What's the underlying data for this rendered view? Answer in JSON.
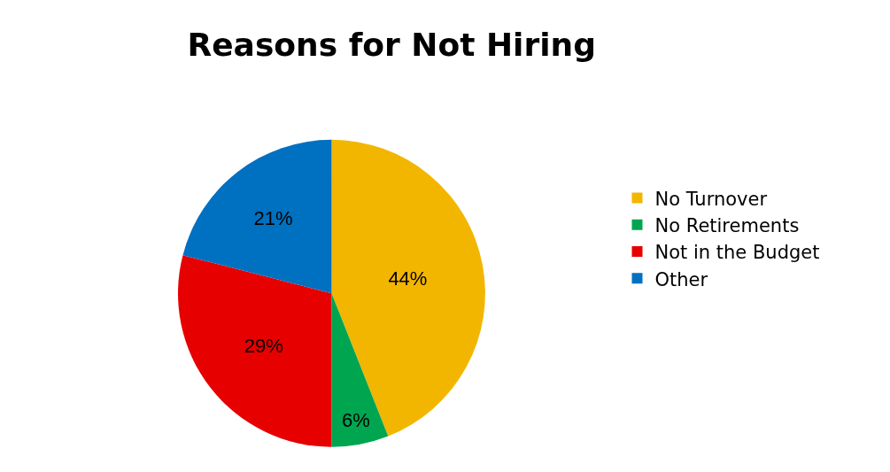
{
  "chart_data": {
    "type": "pie",
    "title": "Reasons for Not Hiring",
    "categories": [
      "No Turnover",
      "No Retirements",
      "Not in the Budget",
      "Other"
    ],
    "values": [
      44,
      6,
      29,
      21
    ],
    "colors": [
      "#f2b600",
      "#00a550",
      "#e60000",
      "#0070c0"
    ],
    "value_labels": [
      "44%",
      "6%",
      "29%",
      "21%"
    ],
    "legend": "right"
  }
}
